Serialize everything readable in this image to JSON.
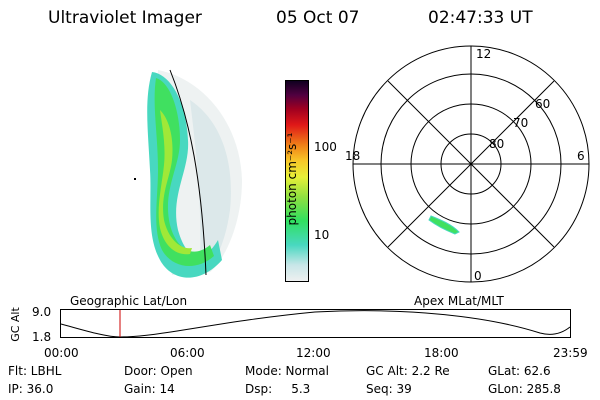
{
  "header": {
    "instrument": "Ultraviolet Imager",
    "date": "05 Oct 07",
    "time": "02:47:33 UT"
  },
  "colorbar": {
    "label": "photon cm⁻²s⁻¹",
    "ticks": [
      "100",
      "10"
    ],
    "colors": [
      "#eef0f0",
      "#c8e6e8",
      "#48d8c0",
      "#30e060",
      "#90e040",
      "#e8f038",
      "#f8c828",
      "#f08018",
      "#e01818",
      "#a00020",
      "#500040",
      "#100020"
    ]
  },
  "polar": {
    "mlt_labels": {
      "top": "12",
      "bottom": "0",
      "left": "18",
      "right": "6"
    },
    "lat_labels": [
      "60",
      "70",
      "80"
    ]
  },
  "timeline": {
    "left_title": "Geographic Lat/Lon",
    "right_title": "Apex MLat/MLT",
    "axis_label": "GC Alt",
    "y_ticks": [
      "9.0",
      "1.8"
    ],
    "x_ticks": [
      "00:00",
      "06:00",
      "12:00",
      "18:00",
      "23:59"
    ],
    "marker_color": "#cc0000"
  },
  "info": {
    "row1": [
      "Flt: LBHL",
      "Door: Open",
      "Mode: Normal",
      "GC Alt: 2.2 Re",
      "GLat: 62.6"
    ],
    "row2": [
      "IP: 36.0",
      "Gain: 14",
      "Dsp:     5.3",
      "Seq: 39",
      "GLon: 285.8"
    ]
  }
}
